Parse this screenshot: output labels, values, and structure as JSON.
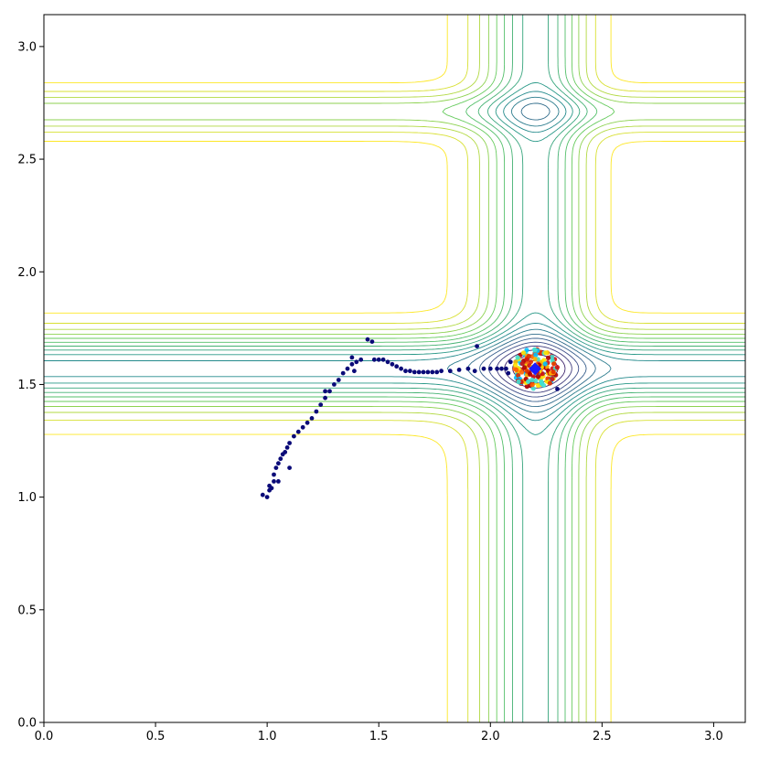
{
  "chart_data": {
    "type": "scatter",
    "title": "",
    "xlabel": "",
    "ylabel": "",
    "xlim": [
      0,
      3.14159
    ],
    "ylim": [
      0,
      3.14159
    ],
    "grid": false,
    "legend": "none",
    "x_ticks": [
      "0.0",
      "0.5",
      "1.0",
      "1.5",
      "2.0",
      "2.5",
      "3.0"
    ],
    "y_ticks": [
      "0.0",
      "0.5",
      "1.0",
      "1.5",
      "2.0",
      "2.5",
      "3.0"
    ],
    "contour": {
      "function": "michalewicz",
      "m": 10,
      "levels": [
        -1.75,
        -1.65,
        -1.55,
        -1.45,
        -1.35,
        -1.25,
        -1.15,
        -1.05,
        -0.95,
        -0.85,
        -0.75,
        -0.65,
        -0.55,
        -0.45,
        -0.35,
        -0.25,
        -0.15,
        -0.05
      ],
      "colormap": [
        "#440154",
        "#3b528b",
        "#21918c",
        "#5ec962",
        "#fde725"
      ]
    },
    "trajectory": {
      "color": "#0a0a78",
      "points": [
        [
          0.98,
          1.01
        ],
        [
          1.0,
          1.0
        ],
        [
          1.01,
          1.03
        ],
        [
          1.01,
          1.05
        ],
        [
          1.02,
          1.04
        ],
        [
          1.03,
          1.07
        ],
        [
          1.03,
          1.1
        ],
        [
          1.04,
          1.13
        ],
        [
          1.05,
          1.15
        ],
        [
          1.06,
          1.17
        ],
        [
          1.07,
          1.19
        ],
        [
          1.08,
          1.2
        ],
        [
          1.09,
          1.22
        ],
        [
          1.1,
          1.24
        ],
        [
          1.12,
          1.27
        ],
        [
          1.14,
          1.29
        ],
        [
          1.16,
          1.31
        ],
        [
          1.18,
          1.33
        ],
        [
          1.2,
          1.35
        ],
        [
          1.22,
          1.38
        ],
        [
          1.24,
          1.41
        ],
        [
          1.26,
          1.44
        ],
        [
          1.28,
          1.47
        ],
        [
          1.3,
          1.5
        ],
        [
          1.32,
          1.52
        ],
        [
          1.34,
          1.55
        ],
        [
          1.36,
          1.57
        ],
        [
          1.38,
          1.59
        ],
        [
          1.4,
          1.6
        ],
        [
          1.42,
          1.61
        ],
        [
          1.45,
          1.7
        ],
        [
          1.47,
          1.69
        ],
        [
          1.38,
          1.62
        ],
        [
          1.05,
          1.07
        ],
        [
          1.1,
          1.13
        ],
        [
          1.26,
          1.47
        ],
        [
          1.39,
          1.56
        ],
        [
          1.48,
          1.61
        ],
        [
          1.5,
          1.61
        ],
        [
          1.52,
          1.61
        ],
        [
          1.54,
          1.6
        ],
        [
          1.56,
          1.59
        ],
        [
          1.58,
          1.58
        ],
        [
          1.6,
          1.57
        ],
        [
          1.62,
          1.56
        ],
        [
          1.64,
          1.56
        ],
        [
          1.66,
          1.555
        ],
        [
          1.68,
          1.555
        ],
        [
          1.7,
          1.555
        ],
        [
          1.72,
          1.555
        ],
        [
          1.74,
          1.555
        ],
        [
          1.76,
          1.555
        ],
        [
          1.78,
          1.56
        ],
        [
          1.82,
          1.56
        ],
        [
          1.86,
          1.565
        ],
        [
          1.9,
          1.57
        ],
        [
          1.94,
          1.67
        ],
        [
          1.93,
          1.56
        ],
        [
          1.97,
          1.57
        ],
        [
          2.0,
          1.57
        ],
        [
          2.03,
          1.57
        ],
        [
          2.05,
          1.57
        ],
        [
          2.07,
          1.57
        ],
        [
          2.08,
          1.55
        ],
        [
          2.09,
          1.6
        ],
        [
          2.3,
          1.48
        ]
      ]
    },
    "population": {
      "center": [
        2.2,
        1.57
      ],
      "spread_x": 0.1,
      "spread_y": 0.09,
      "count": 160,
      "colors": [
        "#b00000",
        "#d01010",
        "#e03000",
        "#ff6000",
        "#ffb000",
        "#ffe000",
        "#40e0d0",
        "#00c0ff"
      ]
    },
    "best_marker": {
      "x": 2.2,
      "y": 1.57,
      "color": "#1a1aff"
    }
  }
}
